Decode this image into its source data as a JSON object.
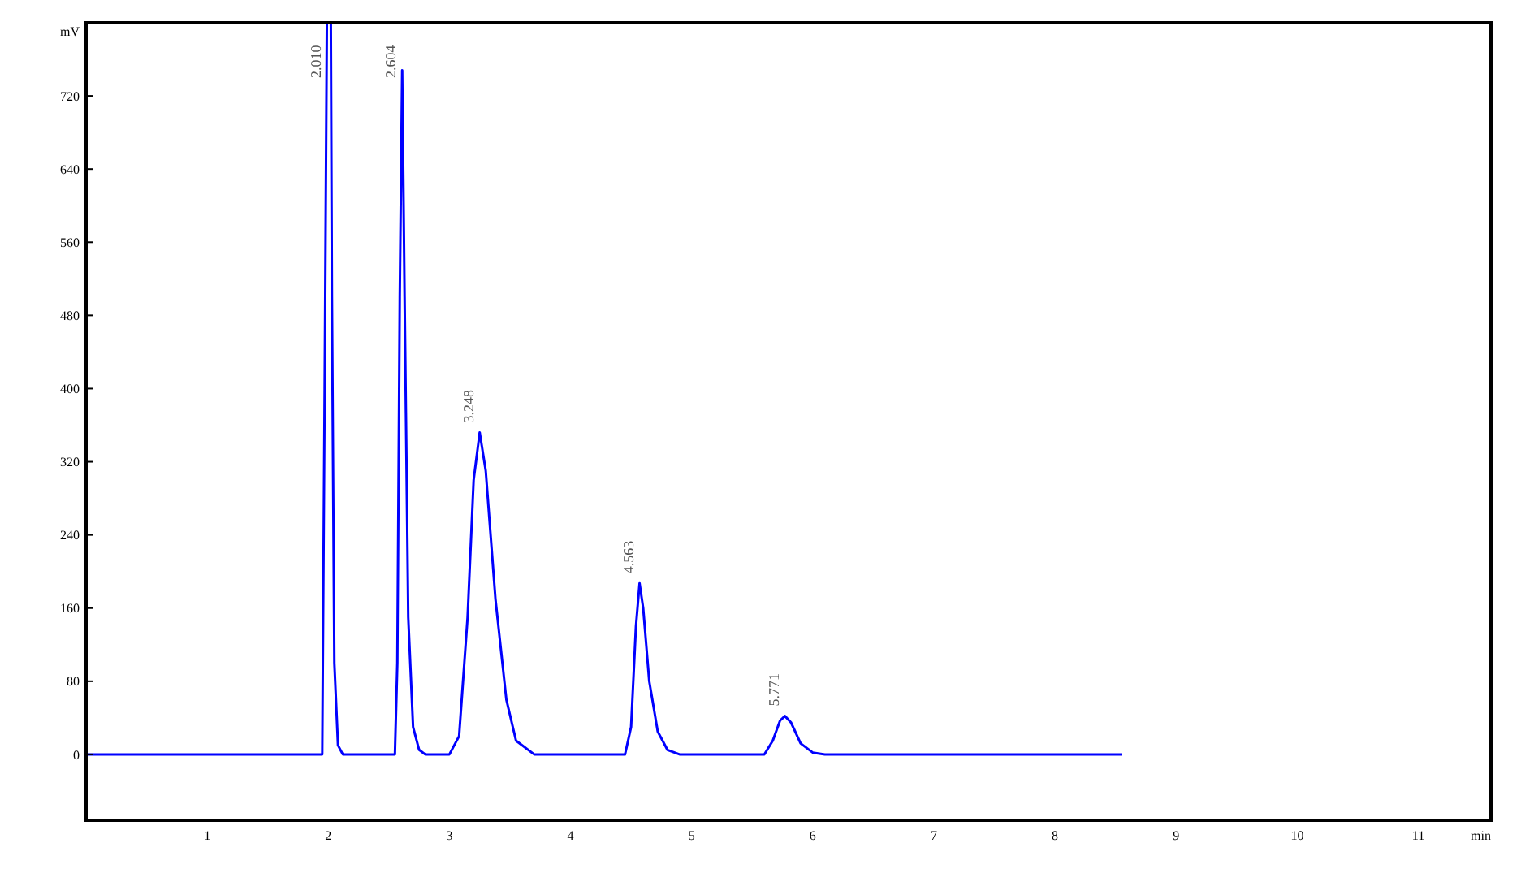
{
  "chart_data": {
    "type": "line",
    "ylabel": "mV",
    "xlabel": "min",
    "x": [
      0,
      1.9,
      1.95,
      1.97,
      1.99,
      2.02,
      2.03,
      2.05,
      2.08,
      2.12,
      2.55,
      2.57,
      2.59,
      2.61,
      2.63,
      2.66,
      2.7,
      2.75,
      2.8,
      3.0,
      3.08,
      3.15,
      3.2,
      3.25,
      3.3,
      3.38,
      3.47,
      3.55,
      3.7,
      4.45,
      4.5,
      4.54,
      4.57,
      4.6,
      4.65,
      4.72,
      4.8,
      4.9,
      5.6,
      5.67,
      5.73,
      5.77,
      5.82,
      5.9,
      6.0,
      6.1,
      8.55
    ],
    "series": [
      {
        "color": "#0000ff",
        "values": [
          0,
          0,
          0,
          400,
          null,
          null,
          500,
          100,
          10,
          0,
          0,
          100,
          500,
          748,
          500,
          150,
          30,
          5,
          0,
          0,
          20,
          150,
          300,
          352,
          310,
          170,
          60,
          15,
          0,
          0,
          30,
          140,
          187,
          160,
          80,
          25,
          5,
          0,
          0,
          15,
          37,
          42,
          35,
          12,
          2,
          0,
          0
        ]
      }
    ],
    "xlim": [
      0,
      11.6
    ],
    "xticks": [
      1,
      2,
      3,
      4,
      5,
      6,
      7,
      8,
      9,
      10,
      11
    ],
    "ylim": [
      -72,
      800
    ],
    "yticks": [
      0,
      80,
      160,
      240,
      320,
      400,
      480,
      560,
      640,
      720
    ],
    "grid": false,
    "marker": "none",
    "line_style": "solid",
    "annotations": [
      {
        "text": "2.010",
        "x": 1.99
      },
      {
        "text": "2.604",
        "x": 2.61,
        "y": 748
      },
      {
        "text": "3.248",
        "x": 3.25,
        "y": 352
      },
      {
        "text": "4.563",
        "x": 4.57,
        "y": 187
      },
      {
        "text": "5.771",
        "x": 5.77,
        "y": 42
      }
    ]
  }
}
